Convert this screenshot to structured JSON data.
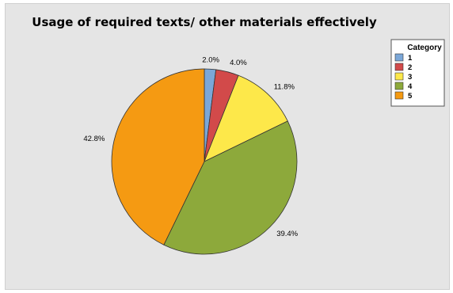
{
  "chart_data": {
    "type": "pie",
    "title": "Usage of required texts/ other materials effectively",
    "legend": {
      "title": "Category",
      "placement": "top-right"
    },
    "categories": [
      "1",
      "2",
      "3",
      "4",
      "5"
    ],
    "values": [
      2.0,
      4.0,
      11.8,
      39.4,
      42.8
    ],
    "value_labels": [
      "2.0%",
      "4.0%",
      "11.8%",
      "39.4%",
      "42.8%"
    ],
    "colors": [
      "#7ba7d8",
      "#d24a4a",
      "#fde84a",
      "#8da93b",
      "#f59a12"
    ]
  }
}
